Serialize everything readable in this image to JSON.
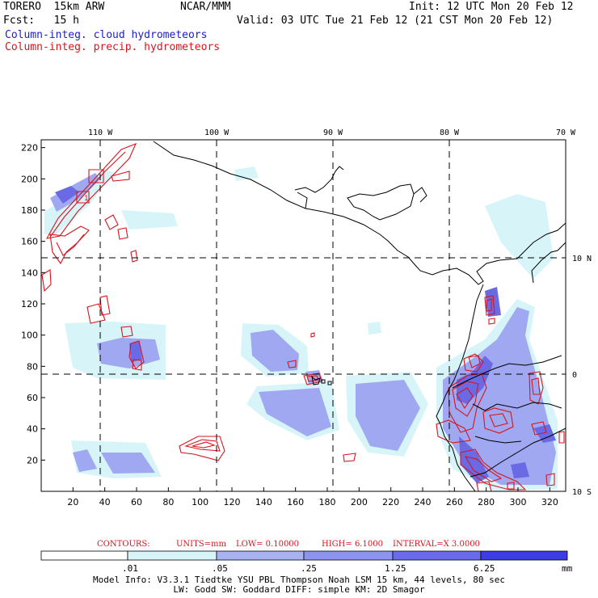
{
  "header": {
    "left_line1": "TORERO  15km ARW",
    "center_line1": "NCAR/MMM",
    "right_line1": "Init: 12 UTC Mon 20 Feb 12",
    "left_line2": "Fcst:   15 h",
    "right_line2": "Valid: 03 UTC Tue 21 Feb 12 (21 CST Mon 20 Feb 12)",
    "legend_cloud": "Column-integ. cloud hydrometeors",
    "legend_precip": "Column-integ. precip. hydrometeors"
  },
  "map": {
    "lon_labels_top": [
      "110 W",
      "100 W",
      "90 W",
      "80 W",
      "70 W"
    ],
    "lat_labels_right": [
      "10 N",
      "0",
      "10 S"
    ],
    "x_ticks": [
      "20",
      "40",
      "60",
      "80",
      "100",
      "120",
      "140",
      "160",
      "180",
      "200",
      "220",
      "240",
      "260",
      "280",
      "300",
      "320"
    ],
    "y_ticks": [
      "20",
      "40",
      "60",
      "80",
      "100",
      "120",
      "140",
      "160",
      "180",
      "200",
      "220"
    ],
    "x_range": [
      0,
      330
    ],
    "y_range": [
      0,
      225
    ],
    "contour_label": "1",
    "colors": {
      "cloud_light": "#d7f5f9",
      "cloud_mid": "#9fa8f0",
      "cloud_dark": "#6666e6",
      "precip_contour": "#d8141e",
      "coast": "#000000"
    }
  },
  "contours_info": {
    "contours": "CONTOURS:",
    "units": "UNITS=mm",
    "low": "LOW= 0.10000",
    "high": "HIGH=  6.1000",
    "interval": "INTERVAL=X  3.0000"
  },
  "colorbar": {
    "labels": [
      ".01",
      ".05",
      ".25",
      "1.25",
      "6.25"
    ],
    "unit": "mm",
    "colors": [
      "#ffffff",
      "#d7f5f9",
      "#aab3f2",
      "#8d94ee",
      "#6b6be8",
      "#3d3de3",
      "#1010e0"
    ]
  },
  "model_info": {
    "line1": "Model Info: V3.3.1   Tiedtke YSU PBL  Thompson    Noah LSM  15 km,   44 levels,   80 sec",
    "line2": "LW: Godd SW: Goddard DIFF: simple KM: 2D Smagor"
  }
}
